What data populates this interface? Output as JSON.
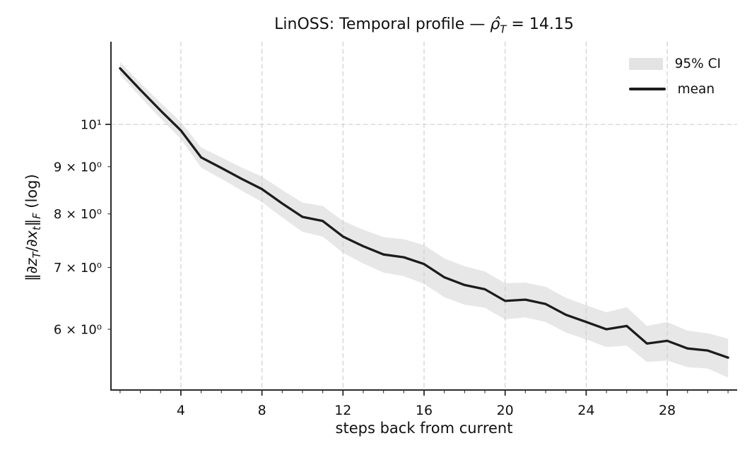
{
  "title": {
    "text": "LinOSS: Temporal profile — ρ̂_T = 14.15",
    "html": "LinOSS: Temporal profile — <i>ρ̂<sub>T</sub></i> = 14.15"
  },
  "axes": {
    "xlabel": "steps back from current",
    "ylabel_text": "‖∂z_T/∂x_t‖_F (log)",
    "ylabel_html": "‖∂<i>z<sub>T</sub></i>/∂<i>x<sub>t</sub></i>‖<sub><i>F</i></sub> (log)"
  },
  "legend": {
    "items": [
      {
        "label": "95% CI",
        "swatch": "band"
      },
      {
        "label": "mean",
        "swatch": "line"
      }
    ],
    "position": "upper right",
    "frame": false
  },
  "chart_data": {
    "type": "line",
    "title": "LinOSS: Temporal profile — ρ̂_T = 14.15",
    "xlabel": "steps back from current",
    "ylabel": "‖∂z_T/∂x_t‖_F (log)",
    "yscale": "log",
    "xlim": [
      0.55,
      31.45
    ],
    "ylim": [
      5.157,
      12.29
    ],
    "grid": "major-only, dashed",
    "legend_position": "upper right",
    "x": [
      1,
      2,
      3,
      4,
      5,
      6,
      7,
      8,
      9,
      10,
      11,
      12,
      13,
      14,
      15,
      16,
      17,
      18,
      19,
      20,
      21,
      22,
      23,
      24,
      25,
      26,
      27,
      28,
      29,
      30,
      31
    ],
    "series": [
      {
        "name": "mean",
        "values": [
          11.5,
          10.9,
          10.35,
          9.85,
          9.21,
          8.97,
          8.73,
          8.51,
          8.21,
          7.94,
          7.86,
          7.56,
          7.38,
          7.23,
          7.18,
          7.06,
          6.83,
          6.7,
          6.63,
          6.44,
          6.46,
          6.39,
          6.22,
          6.11,
          6.0,
          6.05,
          5.79,
          5.83,
          5.72,
          5.69,
          5.59
        ]
      }
    ],
    "ci_band": {
      "name": "95% CI",
      "upper": [
        11.68,
        11.09,
        10.55,
        10.06,
        9.44,
        9.21,
        8.98,
        8.78,
        8.49,
        8.23,
        8.16,
        7.86,
        7.69,
        7.55,
        7.51,
        7.4,
        7.16,
        7.02,
        6.93,
        6.73,
        6.74,
        6.67,
        6.49,
        6.37,
        6.26,
        6.34,
        6.05,
        6.11,
        5.98,
        5.94,
        5.86
      ],
      "lower": [
        11.32,
        10.71,
        10.15,
        9.64,
        8.98,
        8.73,
        8.48,
        8.24,
        7.93,
        7.65,
        7.56,
        7.26,
        7.07,
        6.91,
        6.85,
        6.72,
        6.5,
        6.38,
        6.33,
        6.15,
        6.18,
        6.11,
        5.95,
        5.85,
        5.74,
        5.76,
        5.53,
        5.55,
        5.46,
        5.44,
        5.32
      ]
    },
    "xticks": {
      "major": [
        4,
        8,
        12,
        16,
        20,
        24,
        28
      ],
      "minor_every_integer": true
    },
    "yticks": [
      {
        "value": 10,
        "label": "10¹",
        "major": true
      },
      {
        "value": 9,
        "label": "9 × 10⁰",
        "major": false
      },
      {
        "value": 8,
        "label": "8 × 10⁰",
        "major": false
      },
      {
        "value": 7,
        "label": "7 × 10⁰",
        "major": false
      },
      {
        "value": 6,
        "label": "6 × 10⁰",
        "major": false
      }
    ],
    "colors": {
      "mean_line": "#1c1c1c",
      "ci_band": "#cfcfcf",
      "ci_band_opacity": 0.5,
      "grid": "#cfcfcf",
      "spine": "#2a2a2a",
      "text": "#111111",
      "background": "#ffffff"
    }
  }
}
